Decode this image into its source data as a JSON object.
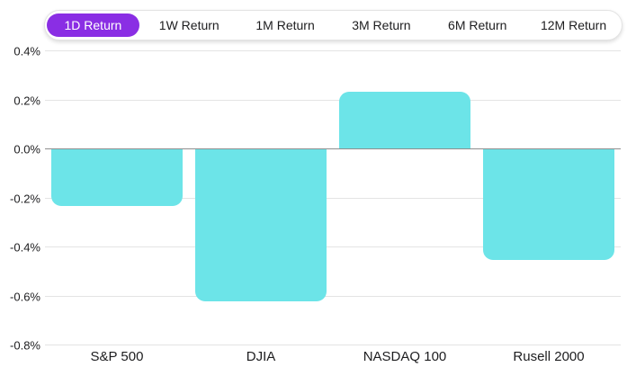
{
  "tab_bar": {
    "items": [
      {
        "label": "1D Return",
        "active": true
      },
      {
        "label": "1W Return",
        "active": false
      },
      {
        "label": "1M Return",
        "active": false
      },
      {
        "label": "3M Return",
        "active": false
      },
      {
        "label": "6M Return",
        "active": false
      },
      {
        "label": "12M Return",
        "active": false
      }
    ]
  },
  "chart_data": {
    "type": "bar",
    "title": "",
    "series_name": "1D Return",
    "categories": [
      "S&P 500",
      "DJIA",
      "NASDAQ 100",
      "Rusell 2000"
    ],
    "values": [
      -0.23,
      -0.62,
      0.23,
      -0.45
    ],
    "unit": "%",
    "xlabel": "",
    "ylabel": "",
    "ylim": [
      -0.8,
      0.4
    ],
    "ytick_step": 0.2,
    "ytick_labels": [
      "0.4%",
      "0.2%",
      "0.0%",
      "-0.2%",
      "-0.4%",
      "-0.6%",
      "-0.8%"
    ],
    "grid": true,
    "legend_position": "none"
  },
  "colors": {
    "accent_purple": "#8a2ee4",
    "active_tab_text": "#ffffff",
    "bar_cyan": "#6ce4e8",
    "gridline": "#e4e4e4",
    "zero_line": "#8e8e8e",
    "text_dark": "#1d1d1f",
    "tab_bar_border": "#e3e3e3"
  }
}
